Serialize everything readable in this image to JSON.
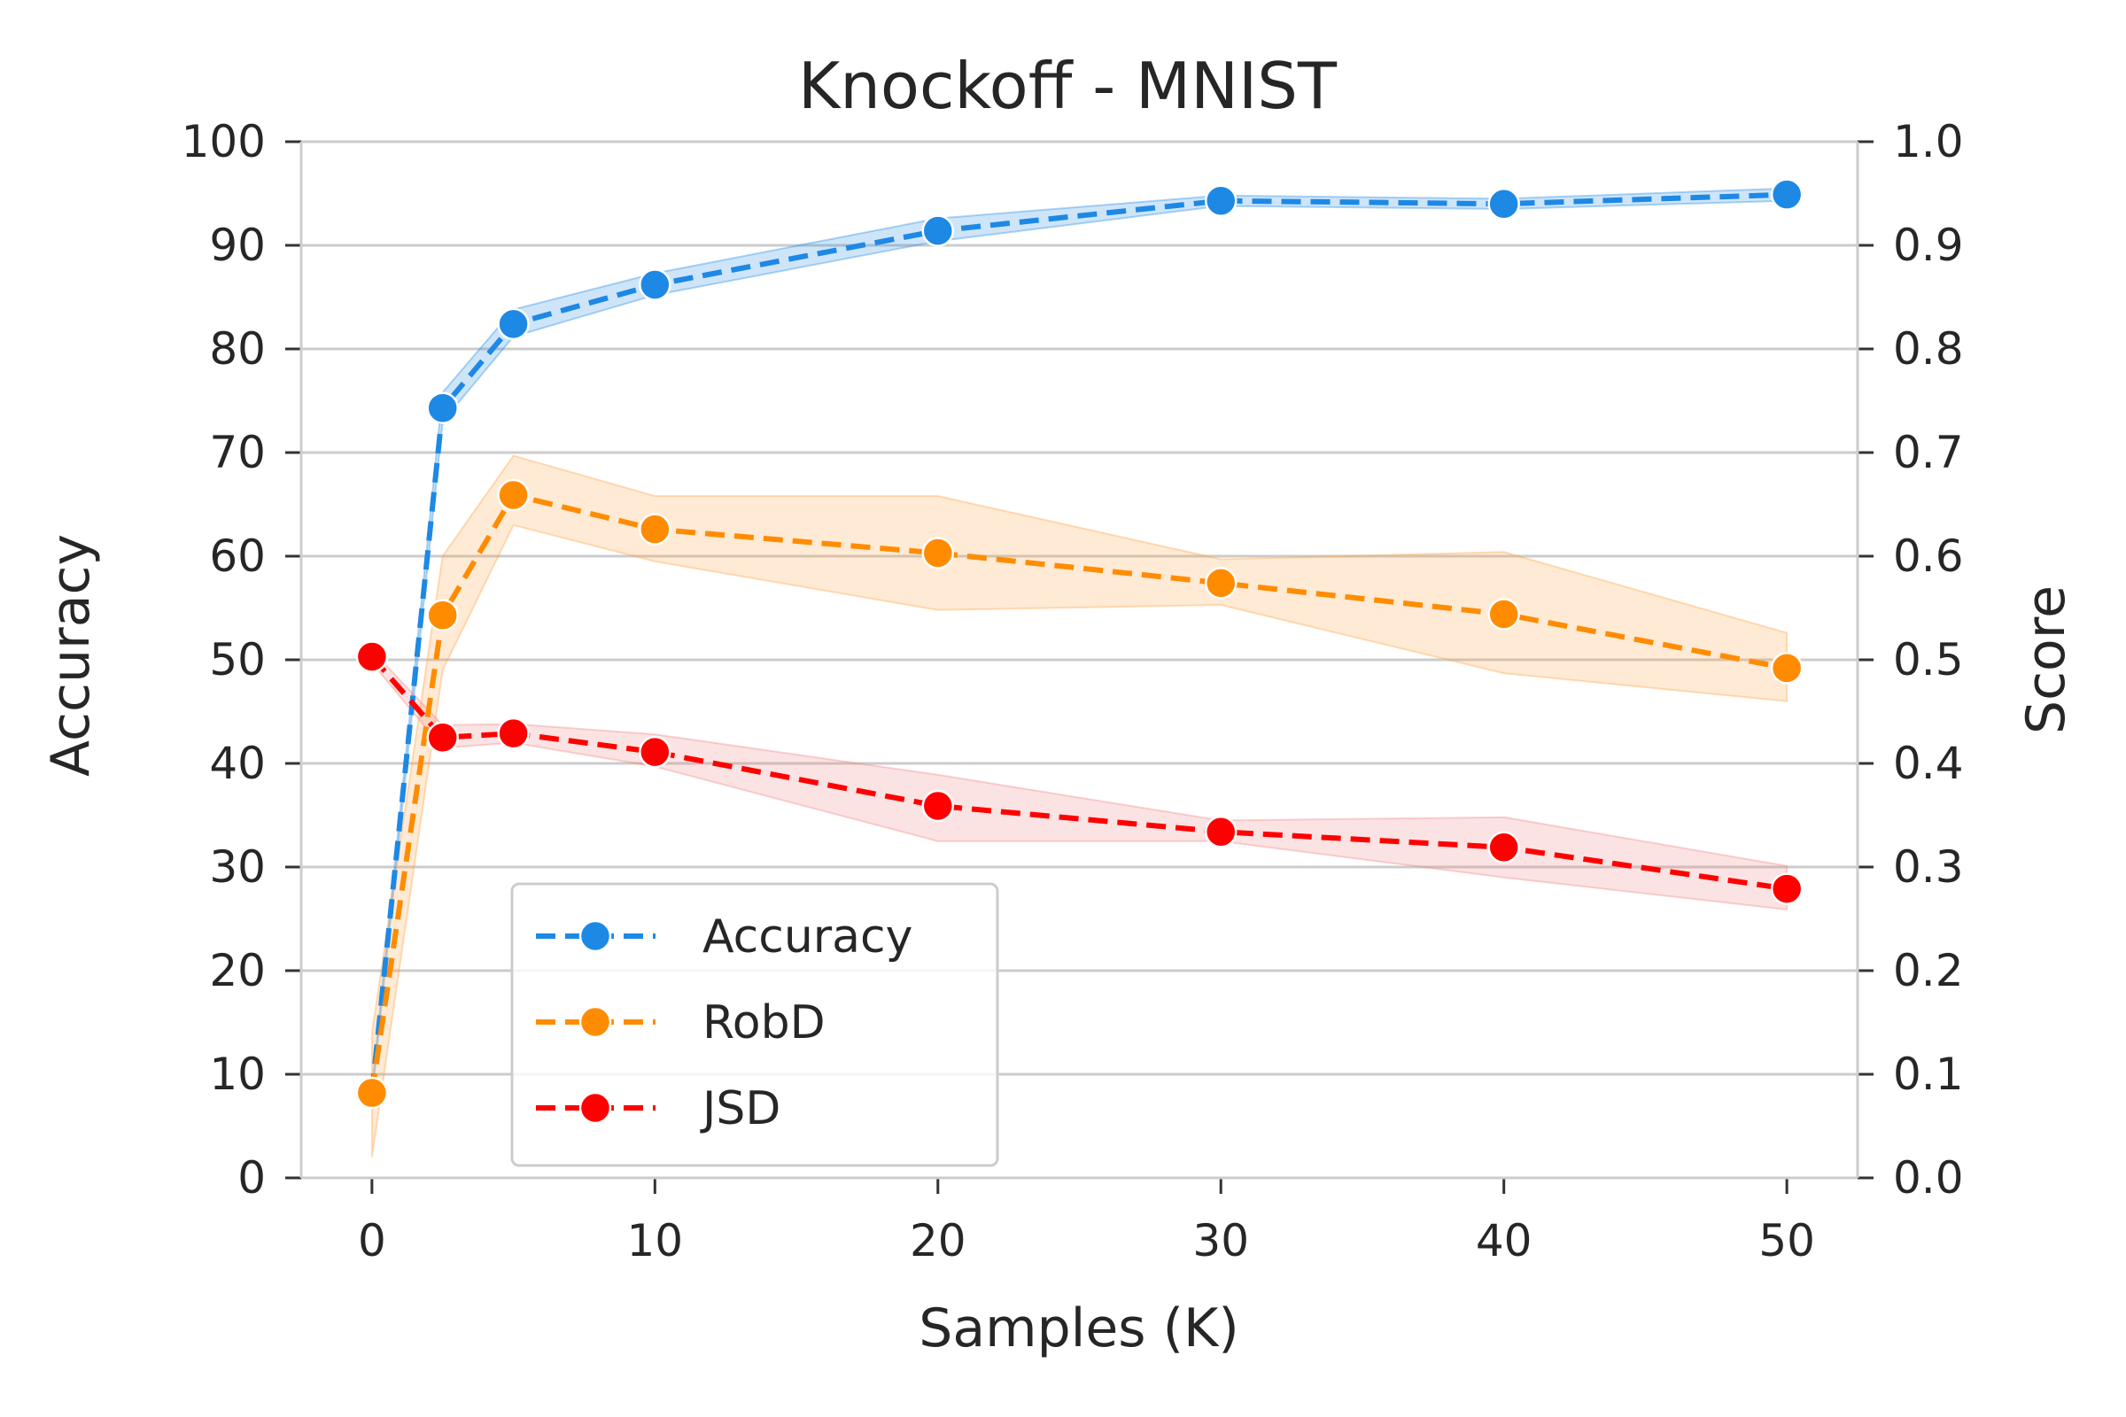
{
  "chart_data": {
    "type": "line",
    "title": "Knockoff - MNIST",
    "xlabel": "Samples (K)",
    "ylabel": "Accuracy",
    "y2label": "Score",
    "xlim": [
      -2.5,
      52.5
    ],
    "ylim": [
      0,
      100
    ],
    "y2lim": [
      0.0,
      1.0
    ],
    "grid": "horizontal",
    "legend_position": "lower-left",
    "x_ticks": [
      0,
      10,
      20,
      30,
      40,
      50
    ],
    "y_ticks": [
      0,
      10,
      20,
      30,
      40,
      50,
      60,
      70,
      80,
      90,
      100
    ],
    "y2_ticks": [
      "0.0",
      "0.1",
      "0.2",
      "0.3",
      "0.4",
      "0.5",
      "0.6",
      "0.7",
      "0.8",
      "0.9",
      "1.0"
    ],
    "series": [
      {
        "name": "Accuracy",
        "axis": "left",
        "color": "#1e88e5",
        "band_color": "#1e88e5",
        "x": [
          0,
          2.5,
          5,
          10,
          20,
          30,
          40,
          50
        ],
        "values": [
          8.2,
          74.3,
          82.4,
          86.2,
          91.4,
          94.3,
          94.0,
          94.9
        ],
        "lower": [
          7.8,
          73.0,
          81.2,
          85.2,
          90.4,
          93.8,
          93.5,
          94.3
        ],
        "upper": [
          8.6,
          75.8,
          83.8,
          87.3,
          92.6,
          94.8,
          94.5,
          95.5
        ]
      },
      {
        "name": "RobD",
        "axis": "right",
        "color": "#ff8c00",
        "band_color": "#ffa040",
        "x": [
          0,
          2.5,
          5,
          10,
          20,
          30,
          40,
          50
        ],
        "values": [
          0.082,
          0.543,
          0.659,
          0.626,
          0.603,
          0.574,
          0.544,
          0.492
        ],
        "lower": [
          0.02,
          0.49,
          0.63,
          0.595,
          0.548,
          0.553,
          0.487,
          0.46
        ],
        "upper": [
          0.14,
          0.6,
          0.697,
          0.658,
          0.658,
          0.597,
          0.604,
          0.526
        ]
      },
      {
        "name": "JSD",
        "axis": "right",
        "color": "#ff0000",
        "band_color": "#f08080",
        "x": [
          0,
          2.5,
          5,
          10,
          20,
          30,
          40,
          50
        ],
        "values": [
          0.503,
          0.425,
          0.429,
          0.411,
          0.359,
          0.334,
          0.319,
          0.279
        ],
        "lower": [
          0.497,
          0.415,
          0.42,
          0.397,
          0.325,
          0.325,
          0.29,
          0.259
        ],
        "upper": [
          0.509,
          0.437,
          0.438,
          0.428,
          0.389,
          0.345,
          0.348,
          0.301
        ]
      }
    ]
  }
}
